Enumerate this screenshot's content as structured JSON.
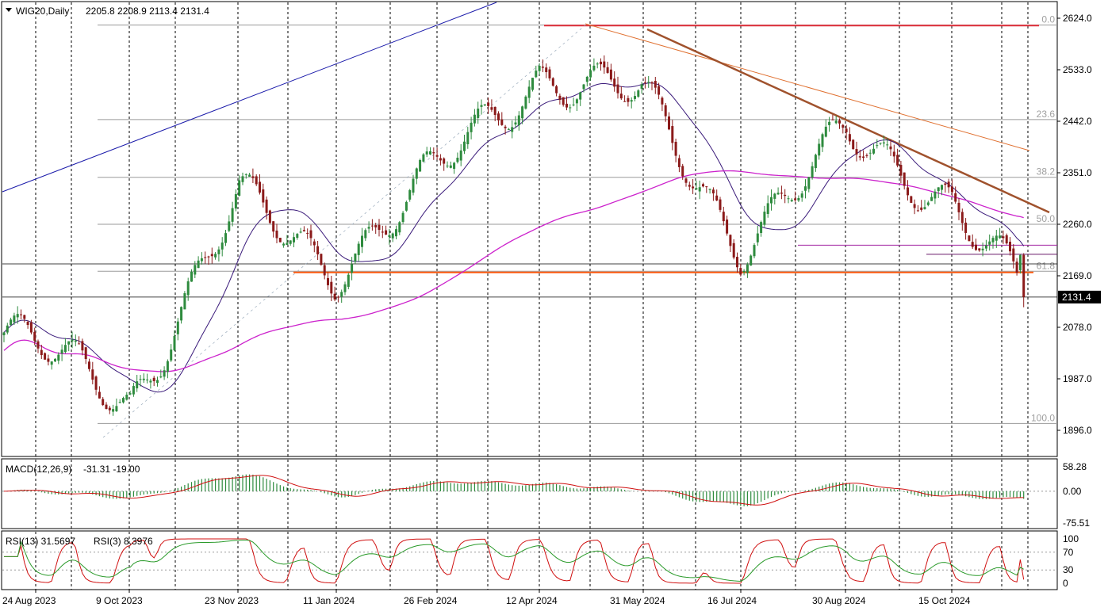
{
  "header": {
    "symbol": "WIG20,Daily",
    "ohlc": "2205.8 2208.9 2113.4 2131.4"
  },
  "macd": {
    "label": "MACD(12,26,9)",
    "values": "-31.31 -19.00",
    "axis": [
      "58.28",
      "0.00",
      "-75.51"
    ]
  },
  "rsi": {
    "label": "RSI(13) 31.5697",
    "label2": "RSI(3) 8.3976",
    "axis": [
      "100",
      "70",
      "30",
      "0"
    ]
  },
  "price_axis": [
    "2624.0",
    "2533.0",
    "2442.0",
    "2351.0",
    "2260.0",
    "2169.0",
    "2078.0",
    "1987.0",
    "1896.0"
  ],
  "last_price": "2131.4",
  "fib_levels": [
    "0.0",
    "23.6",
    "38.2",
    "50.0",
    "61.8",
    "100.0"
  ],
  "date_labels": [
    "24 Aug 2023",
    "9 Oct 2023",
    "23 Nov 2023",
    "11 Jan 2024",
    "26 Feb 2024",
    "12 Apr 2024",
    "31 May 2024",
    "16 Jul 2024",
    "30 Aug 2024",
    "15 Oct 2024"
  ],
  "colors": {
    "bull": "#2e8b3e",
    "bear": "#8b1a1a",
    "ma_short": "#3a1a7a",
    "ma_long": "#cc22cc",
    "trend_blue": "#1a1aaa",
    "resistance_red": "#e0303a",
    "support_orange": "#ff5a10",
    "down_trend": "#a0522d"
  },
  "chart_data": {
    "type": "candlestick",
    "title": "WIG20,Daily",
    "ylim": [
      1870,
      2640
    ],
    "anchors_date": [
      "24 Aug 2023",
      "9 Oct 2023",
      "23 Nov 2023",
      "11 Jan 2024",
      "26 Feb 2024",
      "12 Apr 2024",
      "31 May 2024",
      "16 Jul 2024",
      "30 Aug 2024",
      "15 Oct 2024",
      "end"
    ],
    "anchors_close": [
      2040,
      1950,
      2300,
      2185,
      2350,
      2530,
      2480,
      2230,
      2410,
      2310,
      2131.4
    ],
    "last": {
      "open": 2205.8,
      "high": 2208.9,
      "low": 2113.4,
      "close": 2131.4
    },
    "fibonacci": [
      {
        "label": "0.0",
        "value": 2612
      },
      {
        "label": "23.6",
        "value": 2445
      },
      {
        "label": "38.2",
        "value": 2343
      },
      {
        "label": "50.0",
        "value": 2260
      },
      {
        "label": "61.8",
        "value": 2177
      },
      {
        "label": "100.0",
        "value": 1908
      }
    ],
    "horizontal_lines": [
      {
        "name": "resistance",
        "value": 2611
      },
      {
        "name": "support",
        "value": 2175
      },
      {
        "name": "level-a",
        "value": 2223
      },
      {
        "name": "level-b",
        "value": 2207
      }
    ],
    "macd": {
      "ylim": [
        -75.51,
        58.28
      ],
      "macd": -31.31,
      "signal": -19.0
    },
    "rsi": {
      "ylim": [
        0,
        100
      ],
      "levels": [
        30,
        70
      ],
      "rsi13": 31.5697,
      "rsi3": 8.3976
    }
  }
}
